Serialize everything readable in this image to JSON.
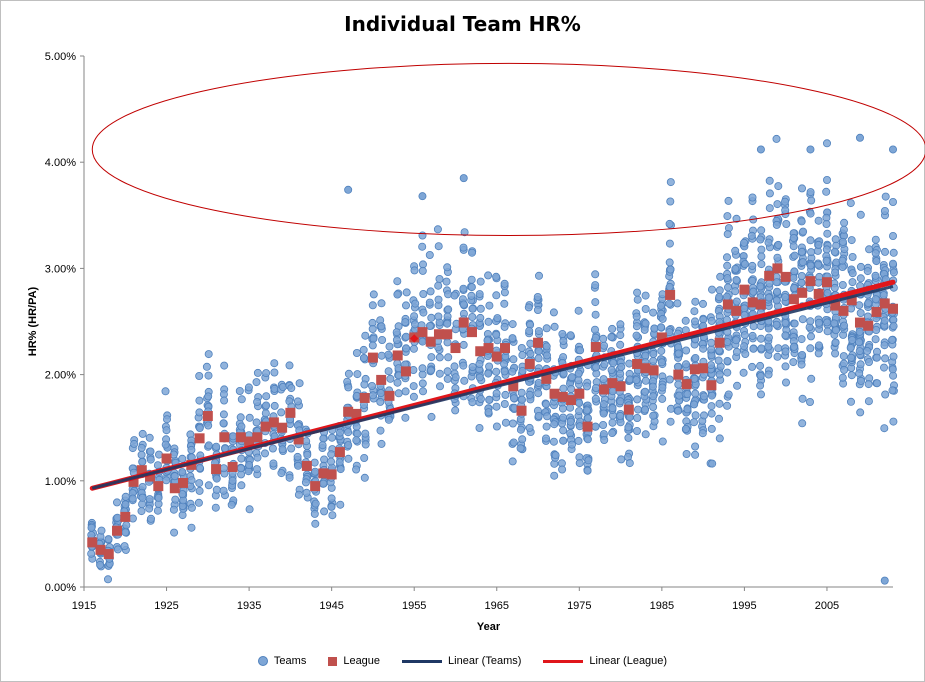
{
  "chart_data": {
    "type": "scatter",
    "title": "Individual Team HR%",
    "xlabel": "Year",
    "ylabel": "HR% (HR/PA)",
    "xlim": [
      1915,
      2013
    ],
    "ylim": [
      0,
      0.05
    ],
    "xticks": [
      "1915",
      "1925",
      "1935",
      "1945",
      "1955",
      "1965",
      "1975",
      "1985",
      "1995",
      "2005"
    ],
    "yticks": [
      "0.00%",
      "1.00%",
      "2.00%",
      "3.00%",
      "4.00%",
      "5.00%"
    ],
    "gridlines": false,
    "legend_position": "bottom",
    "series": [
      {
        "name": "Teams",
        "kind": "scatter-cloud",
        "color": "#7ea6d6",
        "edge": "#4f81bd",
        "note_range": "team values per season spread roughly +/-1% around the league value",
        "outliers": [
          [
            1947,
            0.0374
          ],
          [
            1956,
            0.0368
          ],
          [
            1961,
            0.0385
          ],
          [
            1997,
            0.0412
          ],
          [
            2003,
            0.0412
          ],
          [
            2009,
            0.0423
          ],
          [
            2013,
            0.0412
          ],
          [
            2012,
            0.0006
          ]
        ]
      },
      {
        "name": "League",
        "kind": "scatter",
        "color": "#c0504d",
        "x": [
          1916,
          1917,
          1918,
          1919,
          1920,
          1921,
          1922,
          1923,
          1924,
          1925,
          1926,
          1927,
          1928,
          1929,
          1930,
          1931,
          1932,
          1933,
          1934,
          1935,
          1936,
          1937,
          1938,
          1939,
          1940,
          1941,
          1942,
          1943,
          1944,
          1945,
          1946,
          1947,
          1948,
          1949,
          1950,
          1951,
          1952,
          1953,
          1954,
          1955,
          1956,
          1957,
          1958,
          1959,
          1960,
          1961,
          1962,
          1963,
          1964,
          1965,
          1966,
          1967,
          1968,
          1969,
          1970,
          1971,
          1972,
          1973,
          1974,
          1975,
          1976,
          1977,
          1978,
          1979,
          1980,
          1981,
          1982,
          1983,
          1984,
          1985,
          1986,
          1987,
          1988,
          1989,
          1990,
          1991,
          1992,
          1993,
          1994,
          1995,
          1996,
          1997,
          1998,
          1999,
          2000,
          2001,
          2002,
          2003,
          2004,
          2005,
          2006,
          2007,
          2008,
          2009,
          2010,
          2011,
          2012,
          2013
        ],
        "y": [
          0.0042,
          0.0035,
          0.0031,
          0.0053,
          0.0066,
          0.0099,
          0.011,
          0.0104,
          0.0095,
          0.0121,
          0.0093,
          0.0098,
          0.0115,
          0.014,
          0.0161,
          0.0111,
          0.0141,
          0.0113,
          0.0141,
          0.0137,
          0.0141,
          0.0151,
          0.0155,
          0.015,
          0.0164,
          0.0139,
          0.0114,
          0.0095,
          0.0107,
          0.0106,
          0.0127,
          0.0165,
          0.0163,
          0.0178,
          0.0216,
          0.0195,
          0.018,
          0.0218,
          0.0203,
          0.0235,
          0.024,
          0.0231,
          0.0238,
          0.0238,
          0.0225,
          0.0249,
          0.024,
          0.0222,
          0.0225,
          0.0217,
          0.0225,
          0.0189,
          0.0166,
          0.021,
          0.023,
          0.0196,
          0.0182,
          0.0179,
          0.0176,
          0.0182,
          0.0151,
          0.0226,
          0.0186,
          0.0192,
          0.0189,
          0.0167,
          0.021,
          0.0206,
          0.0204,
          0.0235,
          0.0275,
          0.02,
          0.0191,
          0.0205,
          0.0206,
          0.019,
          0.023,
          0.0266,
          0.026,
          0.028,
          0.0268,
          0.0266,
          0.0293,
          0.03,
          0.0292,
          0.0271,
          0.0277,
          0.0288,
          0.0276,
          0.0287,
          0.0265,
          0.026,
          0.027,
          0.0249,
          0.0246,
          0.0259,
          0.0267,
          0.0262
        ],
        "highlight": [
          1955,
          0.0234
        ]
      },
      {
        "name": "Linear (Teams)",
        "kind": "trendline",
        "color": "#1f3864",
        "from": [
          1916,
          0.0093
        ],
        "to": [
          2013,
          0.0283
        ]
      },
      {
        "name": "Linear (League)",
        "kind": "trendline",
        "color": "#e0161b",
        "from": [
          1916,
          0.0093
        ],
        "to": [
          2013,
          0.0287
        ]
      }
    ],
    "annotations": [
      {
        "kind": "ellipse",
        "color": "#c00000",
        "center": [
          1966.5,
          0.0412
        ],
        "radii_years": 50.5,
        "radii_value": 0.0081
      }
    ]
  }
}
